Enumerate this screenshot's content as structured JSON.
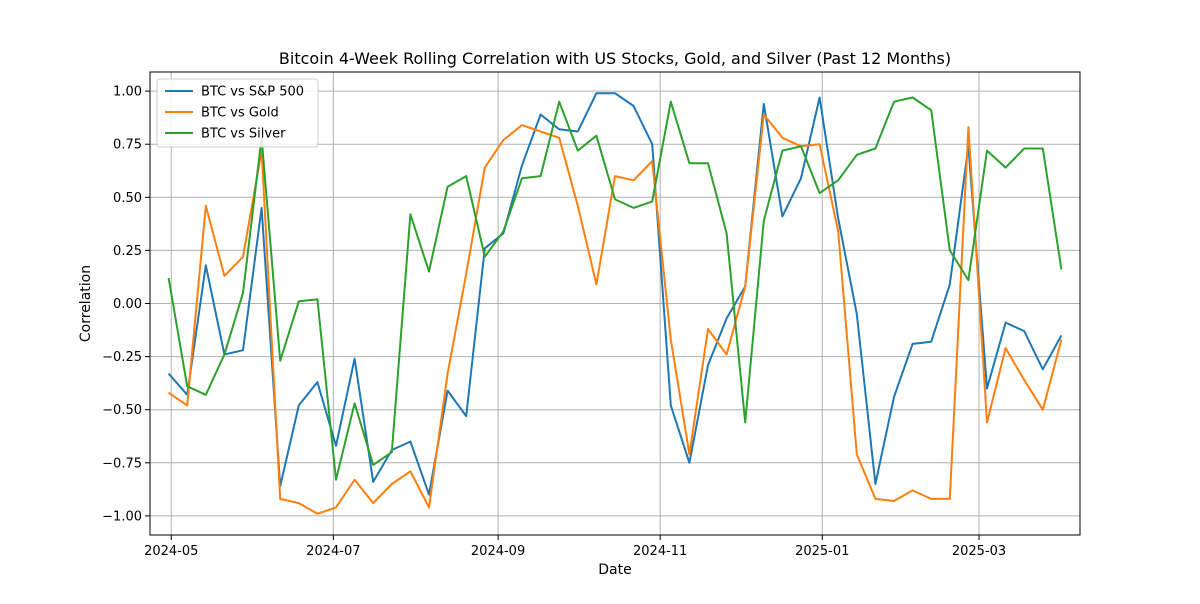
{
  "chart_data": {
    "type": "line",
    "title": "Bitcoin 4-Week Rolling Correlation with US Stocks, Gold, and Silver (Past 12 Months)",
    "xlabel": "Date",
    "ylabel": "Correlation",
    "xlim": [
      "2024-04-23",
      "2025-04-08"
    ],
    "ylim": [
      -1.09,
      1.09
    ],
    "x_ticks": [
      "2024-05",
      "2024-07",
      "2024-09",
      "2024-11",
      "2025-01",
      "2025-03"
    ],
    "y_ticks": [
      -1.0,
      -0.75,
      -0.5,
      -0.25,
      0.0,
      0.25,
      0.5,
      0.75,
      1.0
    ],
    "y_tick_labels": [
      "−1.00",
      "−0.75",
      "−0.50",
      "−0.25",
      "0.00",
      "0.25",
      "0.50",
      "0.75",
      "1.00"
    ],
    "grid": true,
    "legend_position": "top-left",
    "x": [
      "2024-04-30",
      "2024-05-07",
      "2024-05-14",
      "2024-05-21",
      "2024-05-28",
      "2024-06-04",
      "2024-06-11",
      "2024-06-18",
      "2024-06-25",
      "2024-07-02",
      "2024-07-09",
      "2024-07-16",
      "2024-07-23",
      "2024-07-30",
      "2024-08-06",
      "2024-08-13",
      "2024-08-20",
      "2024-08-27",
      "2024-09-03",
      "2024-09-10",
      "2024-09-17",
      "2024-09-24",
      "2024-10-01",
      "2024-10-08",
      "2024-10-15",
      "2024-10-22",
      "2024-10-29",
      "2024-11-05",
      "2024-11-12",
      "2024-11-19",
      "2024-11-26",
      "2024-12-03",
      "2024-12-10",
      "2024-12-17",
      "2024-12-24",
      "2024-12-31",
      "2025-01-07",
      "2025-01-14",
      "2025-01-21",
      "2025-01-28",
      "2025-02-04",
      "2025-02-11",
      "2025-02-18",
      "2025-02-25",
      "2025-03-04",
      "2025-03-11",
      "2025-03-18",
      "2025-03-25",
      "2025-04-01"
    ],
    "series": [
      {
        "name": "BTC vs S&P 500",
        "color": "#1f77b4",
        "values": [
          -0.33,
          -0.43,
          0.18,
          -0.24,
          -0.22,
          0.45,
          -0.86,
          -0.48,
          -0.37,
          -0.67,
          -0.26,
          -0.84,
          -0.69,
          -0.65,
          -0.9,
          -0.41,
          -0.53,
          0.26,
          0.33,
          0.65,
          0.89,
          0.82,
          0.81,
          0.99,
          0.99,
          0.93,
          0.75,
          -0.48,
          -0.75,
          -0.29,
          -0.07,
          0.08,
          0.94,
          0.41,
          0.59,
          0.97,
          0.4,
          -0.05,
          -0.85,
          -0.44,
          -0.19,
          -0.18,
          0.09,
          0.74,
          -0.4,
          -0.09,
          -0.13,
          -0.31,
          -0.15
        ]
      },
      {
        "name": "BTC vs Gold",
        "color": "#ff7f0e",
        "values": [
          -0.42,
          -0.48,
          0.46,
          0.13,
          0.22,
          0.72,
          -0.92,
          -0.94,
          -0.99,
          -0.96,
          -0.83,
          -0.94,
          -0.85,
          -0.79,
          -0.96,
          -0.33,
          0.14,
          0.64,
          0.77,
          0.84,
          0.81,
          0.78,
          0.46,
          0.09,
          0.6,
          0.58,
          0.67,
          -0.17,
          -0.71,
          -0.12,
          -0.24,
          0.08,
          0.89,
          0.78,
          0.74,
          0.75,
          0.34,
          -0.71,
          -0.92,
          -0.93,
          -0.88,
          -0.92,
          -0.92,
          0.83,
          -0.56,
          -0.21,
          -0.36,
          -0.5,
          -0.17
        ]
      },
      {
        "name": "BTC vs Silver",
        "color": "#2ca02c",
        "values": [
          0.12,
          -0.39,
          -0.43,
          -0.24,
          0.05,
          0.78,
          -0.27,
          0.01,
          0.02,
          -0.83,
          -0.47,
          -0.76,
          -0.7,
          0.42,
          0.15,
          0.55,
          0.6,
          0.22,
          0.34,
          0.59,
          0.6,
          0.95,
          0.72,
          0.79,
          0.49,
          0.45,
          0.48,
          0.95,
          0.66,
          0.66,
          0.33,
          -0.56,
          0.39,
          0.72,
          0.74,
          0.52,
          0.58,
          0.7,
          0.73,
          0.95,
          0.97,
          0.91,
          0.25,
          0.11,
          0.72,
          0.64,
          0.73,
          0.73,
          0.16
        ]
      }
    ]
  }
}
